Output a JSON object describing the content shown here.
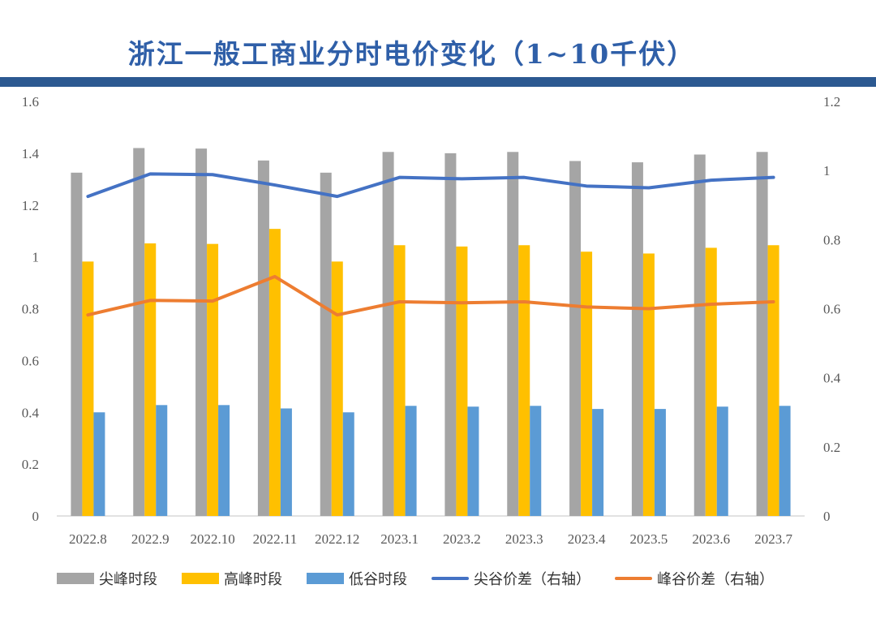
{
  "title": "浙江一般工商业分时电价变化（1~10千伏）",
  "chart_data": {
    "type": "bar+line",
    "categories": [
      "2022.8",
      "2022.9",
      "2022.10",
      "2022.11",
      "2022.12",
      "2023.1",
      "2023.2",
      "2023.3",
      "2023.4",
      "2023.5",
      "2023.6",
      "2023.7"
    ],
    "left_axis": {
      "min": 0,
      "max": 1.6,
      "ticks": [
        "0",
        "0.2",
        "0.4",
        "0.6",
        "0.8",
        "1",
        "1.2",
        "1.4",
        "1.6"
      ]
    },
    "right_axis": {
      "min": 0,
      "max": 1.2,
      "ticks": [
        "0",
        "0.2",
        "0.4",
        "0.6",
        "0.8",
        "1",
        "1.2"
      ]
    },
    "series": [
      {
        "name": "尖峰时段",
        "kind": "bar",
        "axis": "left",
        "color": "#a5a5a5",
        "values": [
          1.325,
          1.42,
          1.418,
          1.372,
          1.325,
          1.405,
          1.4,
          1.405,
          1.37,
          1.365,
          1.395,
          1.405
        ]
      },
      {
        "name": "高峰时段",
        "kind": "bar",
        "axis": "left",
        "color": "#ffc000",
        "values": [
          0.982,
          1.052,
          1.05,
          1.108,
          0.982,
          1.045,
          1.04,
          1.045,
          1.02,
          1.013,
          1.035,
          1.045
        ]
      },
      {
        "name": "低谷时段",
        "kind": "bar",
        "axis": "left",
        "color": "#5b9bd5",
        "values": [
          0.4,
          0.428,
          0.428,
          0.415,
          0.4,
          0.425,
          0.422,
          0.425,
          0.413,
          0.413,
          0.422,
          0.425
        ]
      },
      {
        "name": "尖谷价差（右轴）",
        "kind": "line",
        "axis": "right",
        "color": "#4472c4",
        "values": [
          0.925,
          0.99,
          0.988,
          0.958,
          0.925,
          0.98,
          0.976,
          0.98,
          0.955,
          0.95,
          0.972,
          0.98
        ]
      },
      {
        "name": "峰谷价差（右轴）",
        "kind": "line",
        "axis": "right",
        "color": "#ed7d31",
        "values": [
          0.582,
          0.624,
          0.622,
          0.693,
          0.582,
          0.62,
          0.617,
          0.62,
          0.605,
          0.6,
          0.613,
          0.62
        ]
      }
    ]
  }
}
